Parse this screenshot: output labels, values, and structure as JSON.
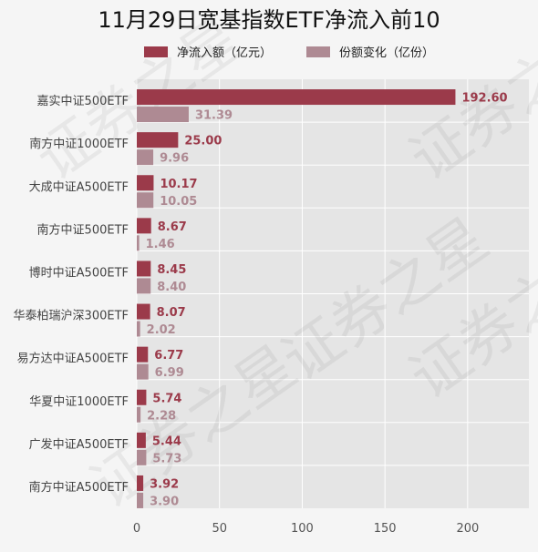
{
  "chart_data": {
    "type": "bar",
    "orientation": "horizontal",
    "title": "11月29日宽基指数ETF净流入前10",
    "categories": [
      "嘉实中证500ETF",
      "南方中证1000ETF",
      "大成中证A500ETF",
      "南方中证500ETF",
      "博时中证A500ETF",
      "华泰柏瑞沪深300ETF",
      "易方达中证A500ETF",
      "华夏中证1000ETF",
      "广发中证A500ETF",
      "南方中证A500ETF"
    ],
    "series": [
      {
        "name": "净流入额（亿元）",
        "values": [
          192.6,
          25.0,
          10.17,
          8.67,
          8.45,
          8.07,
          6.77,
          5.74,
          5.44,
          3.92
        ],
        "color": "#9b3a4a"
      },
      {
        "name": "份额变化（亿份）",
        "values": [
          31.39,
          9.96,
          10.05,
          1.46,
          8.4,
          2.02,
          6.99,
          2.28,
          5.73,
          3.9
        ],
        "color": "#ae8a93"
      }
    ],
    "xlim": [
      0,
      237
    ],
    "xticks": [
      0,
      50,
      100,
      150,
      200
    ],
    "grid": true,
    "legend_position": "top-center",
    "watermark": "证券之星"
  }
}
